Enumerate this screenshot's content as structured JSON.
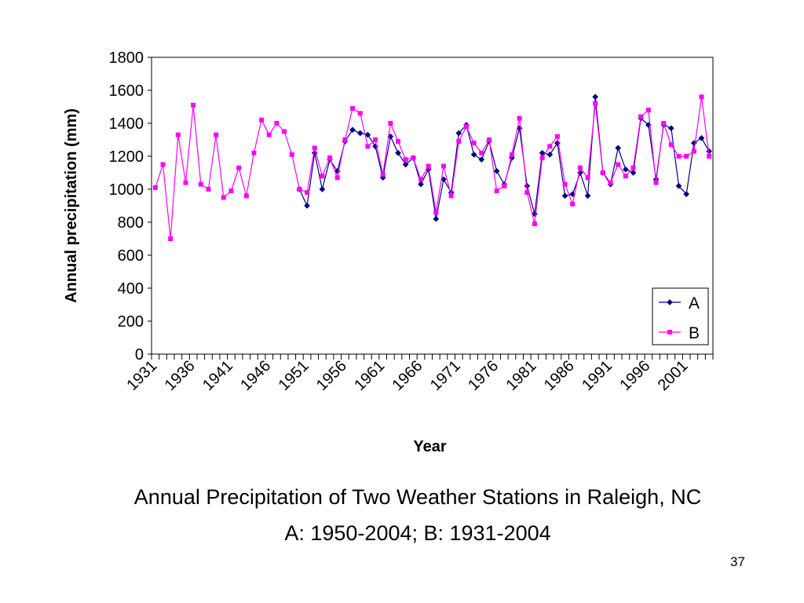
{
  "chart_data": {
    "type": "line",
    "xlabel": "Year",
    "ylabel": "Annual precipitation (mm)",
    "ylim": [
      0,
      1800
    ],
    "yticks": [
      0,
      200,
      400,
      600,
      800,
      1000,
      1200,
      1400,
      1600,
      1800
    ],
    "xlim": [
      1931,
      2004
    ],
    "xtick_labels": [
      "1931",
      "1936",
      "1941",
      "1946",
      "1951",
      "1956",
      "1961",
      "1966",
      "1971",
      "1976",
      "1981",
      "1986",
      "1991",
      "1996",
      "2001"
    ],
    "grid": false,
    "legend_position": "bottom-right",
    "series": [
      {
        "name": "A",
        "color": "#000080",
        "marker": "diamond",
        "x": [
          1950,
          1951,
          1952,
          1953,
          1954,
          1955,
          1956,
          1957,
          1958,
          1959,
          1960,
          1961,
          1962,
          1963,
          1964,
          1965,
          1966,
          1967,
          1968,
          1969,
          1970,
          1971,
          1972,
          1973,
          1974,
          1975,
          1976,
          1977,
          1978,
          1979,
          1980,
          1981,
          1982,
          1983,
          1984,
          1985,
          1986,
          1987,
          1988,
          1989,
          1990,
          1991,
          1992,
          1993,
          1994,
          1995,
          1996,
          1997,
          1998,
          1999,
          2000,
          2001,
          2002,
          2003,
          2004
        ],
        "values": [
          1000,
          900,
          1220,
          1000,
          1180,
          1110,
          1290,
          1360,
          1340,
          1330,
          1260,
          1070,
          1320,
          1220,
          1150,
          1190,
          1030,
          1120,
          820,
          1060,
          980,
          1340,
          1390,
          1210,
          1180,
          1290,
          1110,
          1030,
          1190,
          1370,
          1020,
          850,
          1220,
          1210,
          1280,
          960,
          970,
          1100,
          960,
          1560,
          1100,
          1030,
          1250,
          1120,
          1100,
          1430,
          1390,
          1060,
          1390,
          1370,
          1020,
          970,
          1280,
          1310,
          1230
        ]
      },
      {
        "name": "B",
        "color": "#ff00ff",
        "marker": "square",
        "x": [
          1931,
          1932,
          1933,
          1934,
          1935,
          1936,
          1937,
          1938,
          1939,
          1940,
          1941,
          1942,
          1943,
          1944,
          1945,
          1946,
          1947,
          1948,
          1949,
          1950,
          1951,
          1952,
          1953,
          1954,
          1955,
          1956,
          1957,
          1958,
          1959,
          1960,
          1961,
          1962,
          1963,
          1964,
          1965,
          1966,
          1967,
          1968,
          1969,
          1970,
          1971,
          1972,
          1973,
          1974,
          1975,
          1976,
          1977,
          1978,
          1979,
          1980,
          1981,
          1982,
          1983,
          1984,
          1985,
          1986,
          1987,
          1988,
          1989,
          1990,
          1991,
          1992,
          1993,
          1994,
          1995,
          1996,
          1997,
          1998,
          1999,
          2000,
          2001,
          2002,
          2003,
          2004
        ],
        "values": [
          1010,
          1150,
          700,
          1330,
          1040,
          1510,
          1030,
          1000,
          1330,
          950,
          990,
          1130,
          960,
          1220,
          1420,
          1330,
          1400,
          1350,
          1210,
          1000,
          980,
          1250,
          1080,
          1190,
          1070,
          1300,
          1490,
          1460,
          1260,
          1300,
          1090,
          1400,
          1290,
          1180,
          1190,
          1060,
          1140,
          860,
          1140,
          960,
          1290,
          1380,
          1280,
          1220,
          1300,
          990,
          1020,
          1210,
          1430,
          980,
          790,
          1190,
          1260,
          1320,
          1030,
          910,
          1130,
          1070,
          1520,
          1100,
          1040,
          1150,
          1080,
          1130,
          1440,
          1480,
          1040,
          1400,
          1270,
          1200,
          1200,
          1230,
          1560,
          1200
        ]
      }
    ]
  },
  "caption": {
    "line1": "Annual Precipitation of Two Weather Stations in Raleigh, NC",
    "line2": "A: 1950-2004; B: 1931-2004"
  },
  "page_number": "37"
}
